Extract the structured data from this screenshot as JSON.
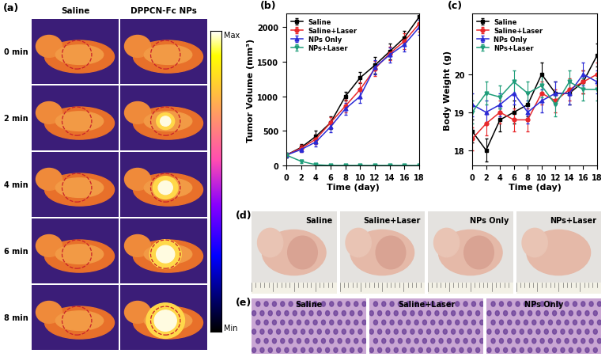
{
  "chart_data": [
    {
      "type": "line",
      "title": "(b)",
      "x_label": "Time (day)",
      "y_label": "Tumor Volume (mm³)",
      "x": [
        0,
        2,
        4,
        6,
        8,
        10,
        12,
        14,
        16,
        18
      ],
      "series": [
        {
          "name": "Saline",
          "color": "#000000",
          "marker": "square",
          "values": [
            150,
            260,
            420,
            620,
            1000,
            1270,
            1450,
            1650,
            1850,
            2150
          ],
          "errors": [
            30,
            50,
            80,
            90,
            60,
            80,
            120,
            110,
            100,
            120
          ]
        },
        {
          "name": "Saline+Laser",
          "color": "#e8282b",
          "marker": "circle",
          "values": [
            150,
            250,
            380,
            620,
            860,
            1100,
            1400,
            1620,
            1800,
            2050
          ],
          "errors": [
            30,
            50,
            70,
            80,
            90,
            100,
            110,
            100,
            110,
            110
          ]
        },
        {
          "name": "NPs Only",
          "color": "#2b2bd6",
          "marker": "triangle_up",
          "values": [
            150,
            230,
            340,
            560,
            820,
            1000,
            1420,
            1600,
            1750,
            2000
          ],
          "errors": [
            30,
            40,
            60,
            80,
            90,
            90,
            100,
            110,
            100,
            110
          ]
        },
        {
          "name": "NPs+Laser",
          "color": "#1f9e7a",
          "marker": "triangle_down",
          "values": [
            150,
            60,
            10,
            0,
            0,
            0,
            0,
            0,
            0,
            0
          ],
          "errors": [
            30,
            20,
            10,
            0,
            0,
            0,
            0,
            0,
            0,
            0
          ]
        }
      ],
      "xlim": [
        0,
        18
      ],
      "xticks": [
        0,
        2,
        4,
        6,
        8,
        10,
        12,
        14,
        16,
        18
      ],
      "ylim": [
        0,
        2200
      ],
      "yticks": [
        0,
        500,
        1000,
        1500,
        2000
      ],
      "legend": "upper left",
      "grid": false
    },
    {
      "type": "line",
      "title": "(c)",
      "x_label": "Time (day)",
      "y_label": "Body Weight (g)",
      "x": [
        0,
        2,
        4,
        6,
        8,
        10,
        12,
        14,
        16,
        18
      ],
      "series": [
        {
          "name": "Saline",
          "color": "#000000",
          "marker": "square",
          "values": [
            18.5,
            18.0,
            18.8,
            19.0,
            19.2,
            20.0,
            19.5,
            19.5,
            19.8,
            20.5
          ],
          "errors": [
            0.3,
            0.3,
            0.3,
            0.3,
            0.3,
            0.3,
            0.3,
            0.3,
            0.3,
            0.3
          ]
        },
        {
          "name": "Saline+Laser",
          "color": "#e8282b",
          "marker": "circle",
          "values": [
            18.3,
            18.7,
            19.0,
            18.8,
            18.8,
            19.5,
            19.3,
            19.6,
            19.8,
            20.0
          ],
          "errors": [
            0.3,
            0.3,
            0.3,
            0.3,
            0.3,
            0.3,
            0.3,
            0.3,
            0.3,
            0.3
          ]
        },
        {
          "name": "NPs Only",
          "color": "#2b2bd6",
          "marker": "triangle_up",
          "values": [
            19.2,
            19.0,
            19.2,
            19.5,
            19.0,
            19.3,
            19.5,
            19.5,
            20.0,
            19.8
          ],
          "errors": [
            0.3,
            0.3,
            0.3,
            0.3,
            0.3,
            0.3,
            0.3,
            0.3,
            0.3,
            0.3
          ]
        },
        {
          "name": "NPs+Laser",
          "color": "#1f9e7a",
          "marker": "triangle_down",
          "values": [
            19.0,
            19.5,
            19.4,
            19.8,
            19.5,
            19.7,
            19.2,
            19.8,
            19.6,
            19.6
          ],
          "errors": [
            0.3,
            0.3,
            0.3,
            0.3,
            0.3,
            0.3,
            0.3,
            0.3,
            0.3,
            0.3
          ]
        }
      ],
      "xlim": [
        0,
        18
      ],
      "xticks": [
        0,
        2,
        4,
        6,
        8,
        10,
        12,
        14,
        16,
        18
      ],
      "ylim": [
        17.6,
        21.6
      ],
      "yticks": [
        18,
        19,
        20
      ],
      "legend": "upper left",
      "grid": false
    }
  ],
  "thermal_images": {
    "label": "(a)",
    "columns": [
      "Saline",
      "DPPCN-Fc NPs"
    ],
    "rows": [
      "0 min",
      "2 min",
      "4 min",
      "6 min",
      "8 min"
    ],
    "colorbar": {
      "max_label": "Max",
      "min_label": "Min"
    }
  },
  "photos": {
    "label": "(d)",
    "captions": [
      "Saline",
      "Saline+Laser",
      "NPs Only",
      "NPs+Laser"
    ]
  },
  "histology": {
    "label": "(e)",
    "captions": [
      "Saline",
      "Saline+Laser",
      "NPs Only"
    ]
  }
}
